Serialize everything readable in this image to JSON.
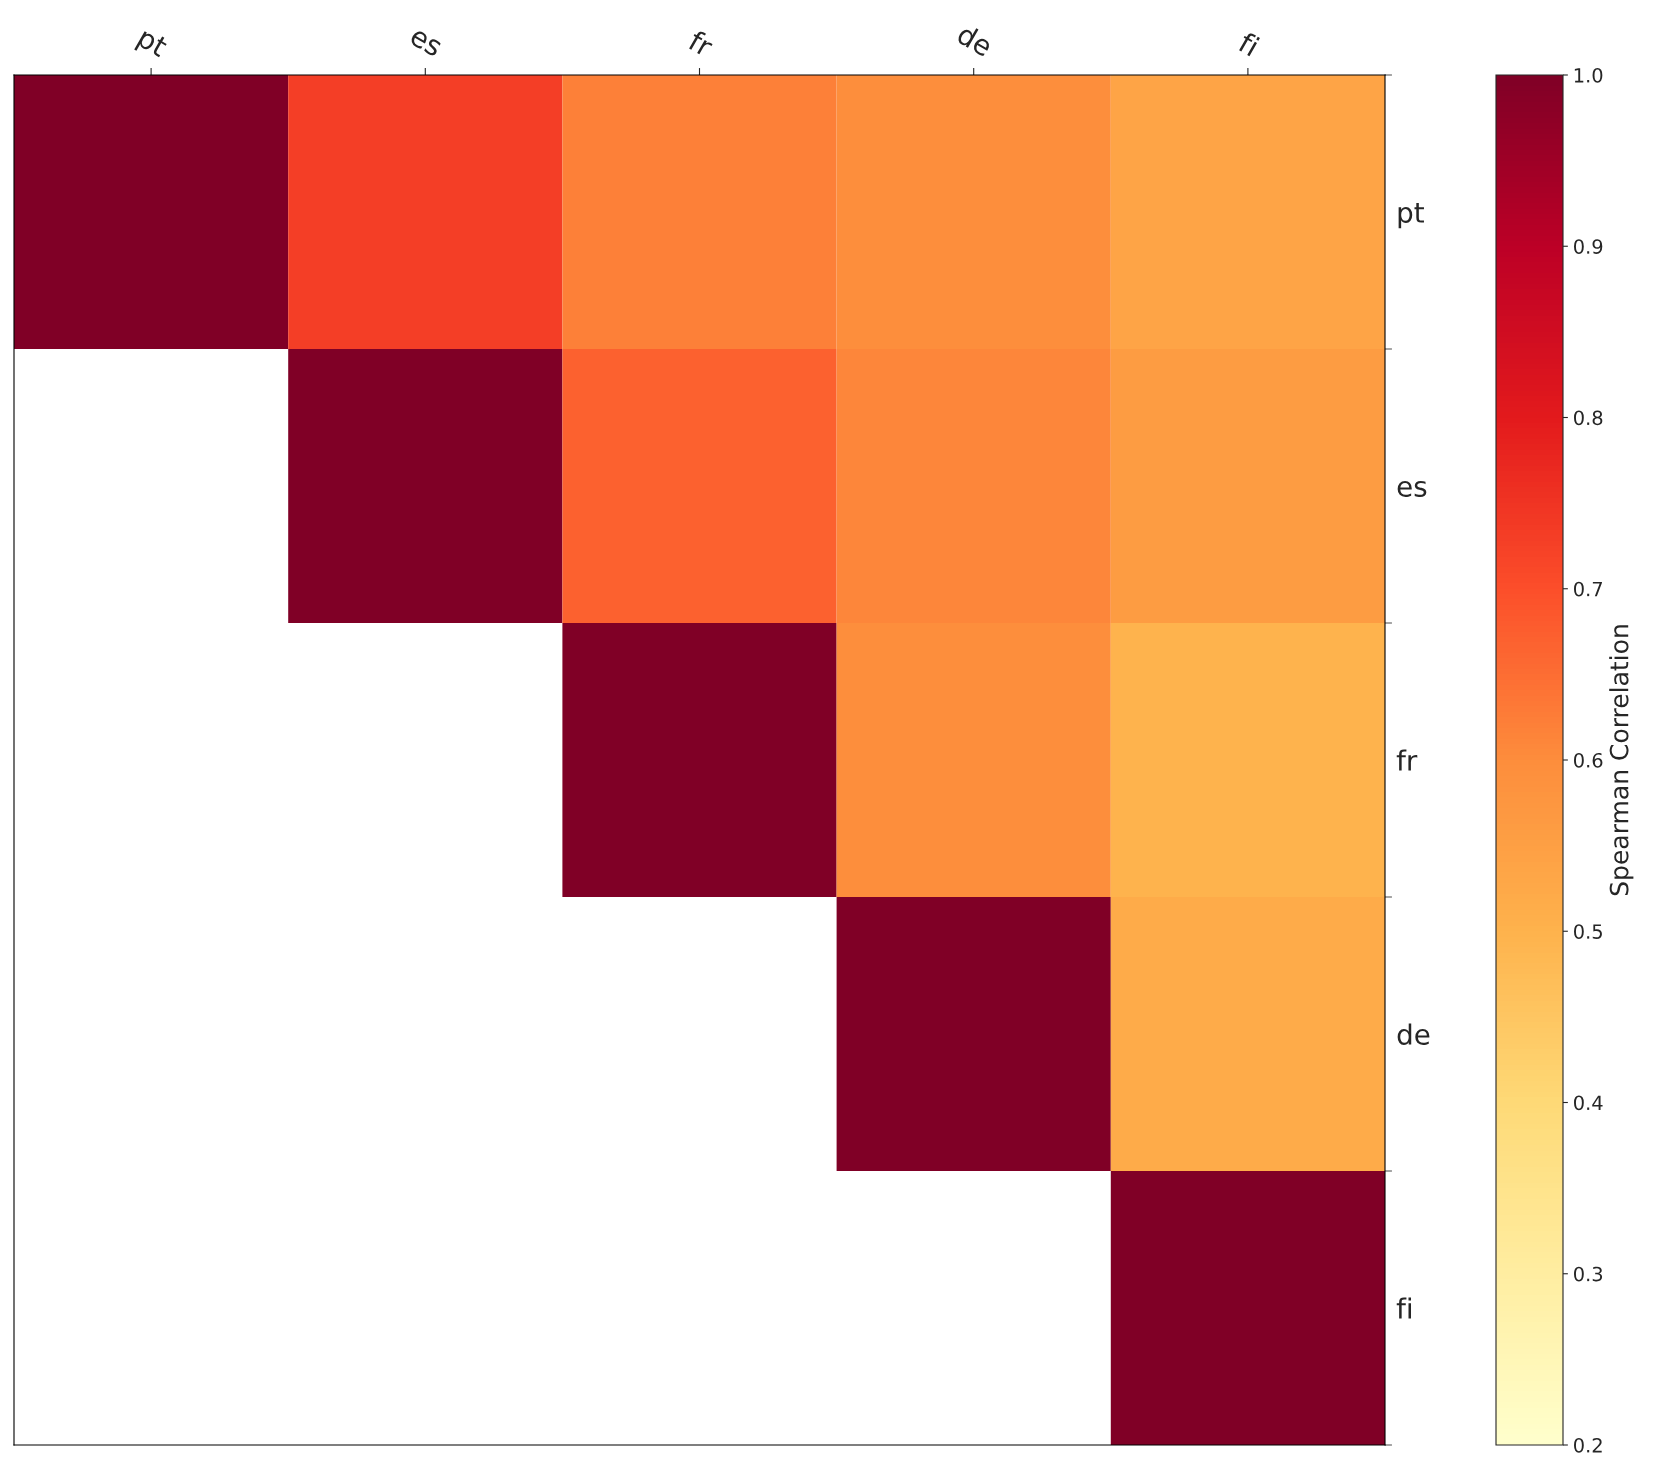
{
  "chart_data": {
    "type": "heatmap",
    "categories": [
      "pt",
      "es",
      "fr",
      "de",
      "fi"
    ],
    "y_categories": [
      "pt",
      "es",
      "fr",
      "de",
      "fi"
    ],
    "cells": [
      [
        1.0,
        0.73,
        0.62,
        0.6,
        0.54
      ],
      [
        null,
        1.0,
        0.67,
        0.61,
        0.56
      ],
      [
        null,
        null,
        1.0,
        0.6,
        0.5
      ],
      [
        null,
        null,
        null,
        1.0,
        0.52
      ],
      [
        null,
        null,
        null,
        null,
        1.0
      ]
    ],
    "clim": [
      0.2,
      1.0
    ],
    "cticks": [
      0.2,
      0.3,
      0.4,
      0.5,
      0.6,
      0.7,
      0.8,
      0.9,
      {
        "value": 1,
        "label": "1.0"
      }
    ],
    "clabel": "Spearman Correlation",
    "grid": false
  }
}
